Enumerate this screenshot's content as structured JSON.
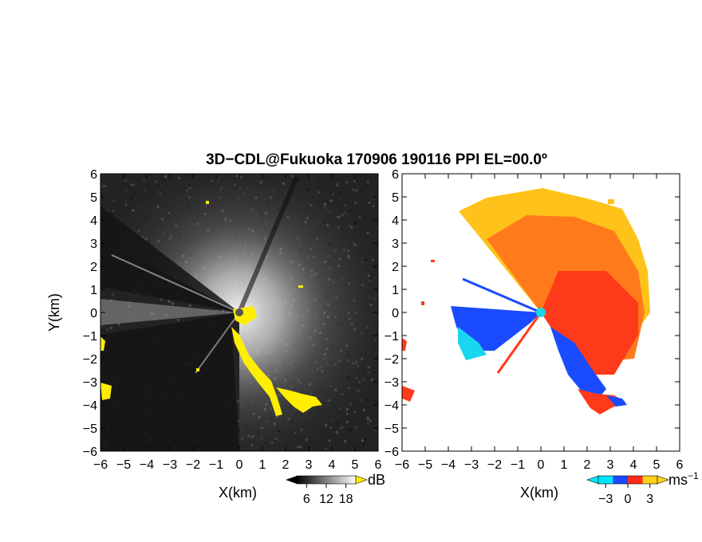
{
  "chart_data": [
    {
      "type": "heatmap",
      "title": "3D−CDL@Fukuoka 170906 190116 PPI EL=00.0º",
      "panel": "left",
      "quantity": "backscatter intensity",
      "xlabel": "X(km)",
      "ylabel": "Y(km)",
      "xlim": [
        -6,
        6
      ],
      "ylim": [
        -6,
        6
      ],
      "x_ticks": [
        "−6",
        "−5",
        "−4",
        "−3",
        "−2",
        "−1",
        "0",
        "1",
        "2",
        "3",
        "4",
        "5",
        "6"
      ],
      "y_ticks": [
        "6",
        "5",
        "4",
        "3",
        "2",
        "1",
        "0",
        "−1",
        "−2",
        "−3",
        "−4",
        "−5",
        "−6"
      ],
      "colormap": "grayscale",
      "colorbar": {
        "unit": "dB",
        "ticks": [
          "6",
          "12",
          "18"
        ],
        "range": [
          3,
          21
        ]
      },
      "highlight_color": "#ffee00",
      "radar_center": [
        0,
        0
      ],
      "grid": false
    },
    {
      "type": "heatmap",
      "panel": "right",
      "quantity": "Doppler radial velocity",
      "xlabel": "X(km)",
      "xlim": [
        -6,
        6
      ],
      "ylim": [
        -6,
        6
      ],
      "x_ticks": [
        "−6",
        "−5",
        "−4",
        "−3",
        "−2",
        "−1",
        "0",
        "1",
        "2",
        "3",
        "4",
        "5",
        "6"
      ],
      "y_ticks": [
        "6",
        "5",
        "4",
        "3",
        "2",
        "1",
        "0",
        "−1",
        "−2",
        "−3",
        "−4",
        "−5",
        "−6"
      ],
      "colormap": [
        "#00e5ff",
        "#1a4bff",
        "#ff2a1a",
        "#ffd21a"
      ],
      "colorbar": {
        "unit": "ms",
        "unit_exponent": "−1",
        "ticks": [
          "−3",
          "0",
          "3"
        ],
        "range": [
          -4,
          4
        ]
      },
      "radar_center": [
        0,
        0
      ],
      "center_marker_color": "#19d6e6",
      "grid": false
    }
  ]
}
